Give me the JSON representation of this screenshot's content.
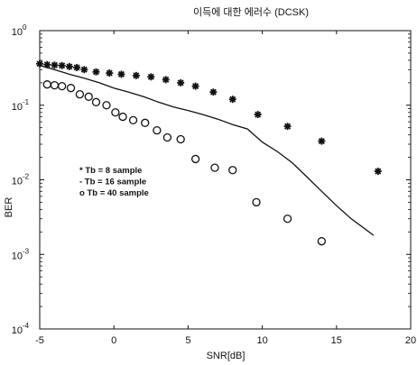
{
  "chart_data": {
    "type": "scatter",
    "title": "이득에 대한 에러수 (DCSK)",
    "xlabel": "SNR[dB]",
    "ylabel": "BER",
    "xlim": [
      -5,
      20
    ],
    "ylim": [
      0.0001,
      1
    ],
    "yscale": "log",
    "grid": false,
    "legend_position": "center-left",
    "x_ticks": [
      {
        "value": -5,
        "label": "-5"
      },
      {
        "value": 0,
        "label": "0"
      },
      {
        "value": 5,
        "label": "5"
      },
      {
        "value": 10,
        "label": "10"
      },
      {
        "value": 15,
        "label": "15"
      },
      {
        "value": 20,
        "label": "20"
      }
    ],
    "y_ticks": [
      {
        "value": 1,
        "base": "10",
        "exp": "0"
      },
      {
        "value": 0.1,
        "base": "10",
        "exp": "-1"
      },
      {
        "value": 0.01,
        "base": "10",
        "exp": "-2"
      },
      {
        "value": 0.001,
        "base": "10",
        "exp": "-3"
      },
      {
        "value": 0.0001,
        "base": "10",
        "exp": "-4"
      }
    ],
    "series": [
      {
        "name": "Tb = 8 sample",
        "legend_label": "* Tb =  8 sample",
        "marker": "star",
        "color": "#111111",
        "points": [
          [
            -5,
            0.36
          ],
          [
            -4.5,
            0.35
          ],
          [
            -4,
            0.345
          ],
          [
            -3.5,
            0.34
          ],
          [
            -3,
            0.33
          ],
          [
            -2.5,
            0.32
          ],
          [
            -2,
            0.3
          ],
          [
            -1.2,
            0.28
          ],
          [
            -0.3,
            0.27
          ],
          [
            0.5,
            0.26
          ],
          [
            1.5,
            0.25
          ],
          [
            2.5,
            0.24
          ],
          [
            3.5,
            0.22
          ],
          [
            4.5,
            0.2
          ],
          [
            5.5,
            0.18
          ],
          [
            6.7,
            0.15
          ],
          [
            8,
            0.12
          ],
          [
            9.7,
            0.075
          ],
          [
            11.7,
            0.052
          ],
          [
            14,
            0.033
          ],
          [
            17.8,
            0.013
          ]
        ]
      },
      {
        "name": "Tb = 16 sample",
        "legend_label": "- Tb = 16 sample",
        "marker": "line",
        "color": "#111111",
        "points": [
          [
            -5,
            0.34
          ],
          [
            -4,
            0.3
          ],
          [
            -3,
            0.26
          ],
          [
            -2,
            0.23
          ],
          [
            -1,
            0.2
          ],
          [
            0,
            0.17
          ],
          [
            1,
            0.15
          ],
          [
            2,
            0.13
          ],
          [
            3,
            0.11
          ],
          [
            4,
            0.095
          ],
          [
            5,
            0.085
          ],
          [
            6,
            0.075
          ],
          [
            7,
            0.065
          ],
          [
            8,
            0.055
          ],
          [
            9,
            0.048
          ],
          [
            10,
            0.032
          ],
          [
            11,
            0.024
          ],
          [
            12,
            0.017
          ],
          [
            13,
            0.011
          ],
          [
            14,
            0.007
          ],
          [
            15,
            0.0045
          ],
          [
            16,
            0.003
          ],
          [
            17.5,
            0.0018
          ]
        ]
      },
      {
        "name": "Tb = 40 sample",
        "legend_label": "o Tb = 40 sample",
        "marker": "circle",
        "color": "#111111",
        "points": [
          [
            -4.5,
            0.19
          ],
          [
            -4,
            0.185
          ],
          [
            -3.5,
            0.18
          ],
          [
            -2.9,
            0.17
          ],
          [
            -2.3,
            0.14
          ],
          [
            -1.7,
            0.13
          ],
          [
            -1.2,
            0.11
          ],
          [
            -0.5,
            0.1
          ],
          [
            0.1,
            0.08
          ],
          [
            0.6,
            0.07
          ],
          [
            1.3,
            0.063
          ],
          [
            2.1,
            0.058
          ],
          [
            2.9,
            0.046
          ],
          [
            3.6,
            0.037
          ],
          [
            4.5,
            0.035
          ],
          [
            5.5,
            0.019
          ],
          [
            6.8,
            0.0145
          ],
          [
            8,
            0.0135
          ],
          [
            9.6,
            0.005
          ],
          [
            11.7,
            0.003
          ],
          [
            14,
            0.0015
          ]
        ]
      }
    ]
  }
}
